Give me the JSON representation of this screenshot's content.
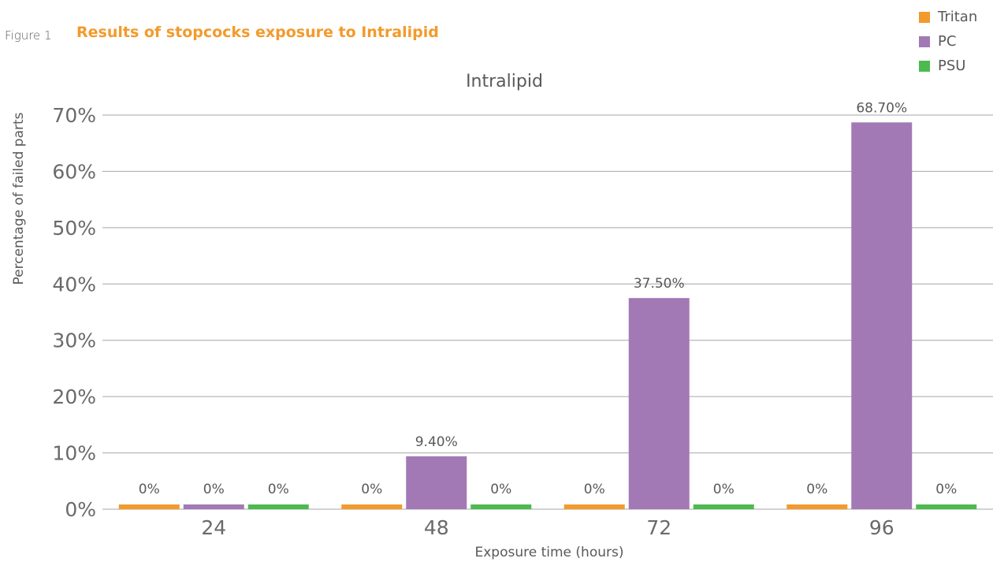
{
  "figure": {
    "label": "Figure 1",
    "title": "Results of stopcocks exposure to Intralipid"
  },
  "chart_data": {
    "type": "bar",
    "title": "Intralipid",
    "xlabel": "Exposure time (hours)",
    "ylabel": "Percentage of failed parts",
    "categories": [
      "24",
      "48",
      "72",
      "96"
    ],
    "ylim": [
      0,
      70
    ],
    "yticks": [
      "0%",
      "10%",
      "20%",
      "30%",
      "40%",
      "50%",
      "60%",
      "70%"
    ],
    "grid": true,
    "legend_position": "top-right",
    "series": [
      {
        "name": "Tritan",
        "color": "#f39a2c",
        "values": [
          0,
          0,
          0,
          0
        ],
        "labels": [
          "0%",
          "0%",
          "0%",
          "0%"
        ]
      },
      {
        "name": "PC",
        "color": "#a279b5",
        "values": [
          0,
          9.4,
          37.5,
          68.7
        ],
        "labels": [
          "0%",
          "9.40%",
          "37.50%",
          "68.70%"
        ]
      },
      {
        "name": "PSU",
        "color": "#4cba4d",
        "values": [
          0,
          0,
          0,
          0
        ],
        "labels": [
          "0%",
          "0%",
          "0%",
          "0%"
        ]
      }
    ]
  }
}
